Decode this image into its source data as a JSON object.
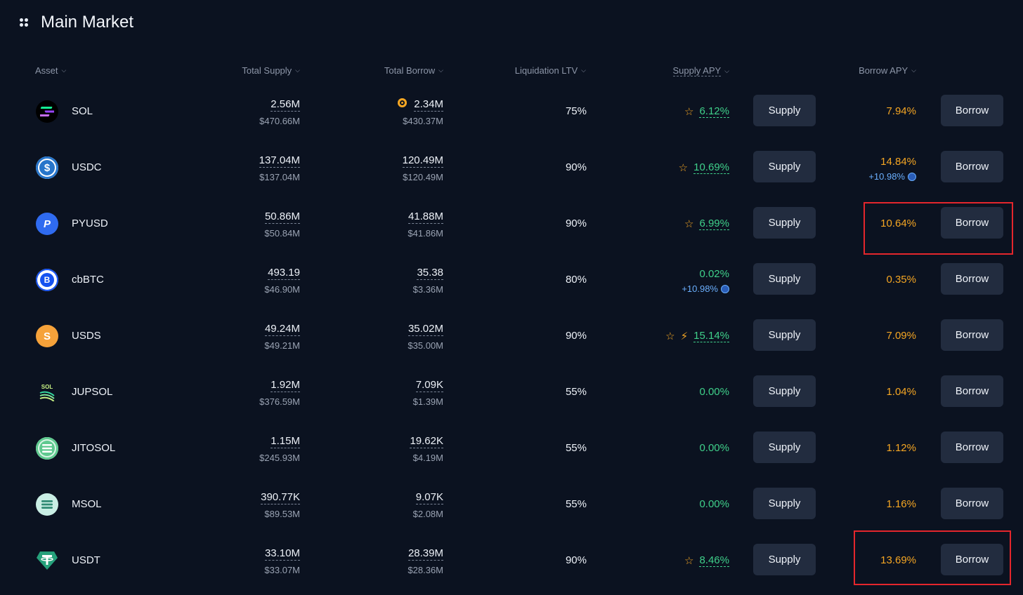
{
  "header": {
    "title": "Main Market"
  },
  "columns": {
    "asset": "Asset",
    "total_supply": "Total Supply",
    "total_borrow": "Total Borrow",
    "liquidation_ltv": "Liquidation LTV",
    "supply_apy": "Supply APY",
    "borrow_apy": "Borrow APY"
  },
  "buttons": {
    "supply": "Supply",
    "borrow": "Borrow"
  },
  "icons": {
    "star": "star-icon",
    "bolt": "lightning-icon",
    "reward": "reward-badge-icon",
    "coin": "coin-icon",
    "menu": "grid-dots-icon",
    "chevron": "chevron-down-icon"
  },
  "colors": {
    "background": "#0b1220",
    "supply_apy": "#3fd08a",
    "borrow_apy": "#f5a623",
    "reward_apy": "#6aaefc",
    "button": "#222c3f",
    "highlight": "#e4262c"
  },
  "assets": [
    {
      "symbol": "SOL",
      "supply": "2.56M",
      "supply_usd": "$470.66M",
      "borrow": "2.34M",
      "borrow_usd": "$430.37M",
      "ltv": "75%",
      "supply_apy": "6.12%",
      "supply_reward": "",
      "borrow_apy": "7.94%",
      "borrow_reward": ""
    },
    {
      "symbol": "USDC",
      "supply": "137.04M",
      "supply_usd": "$137.04M",
      "borrow": "120.49M",
      "borrow_usd": "$120.49M",
      "ltv": "90%",
      "supply_apy": "10.69%",
      "supply_reward": "",
      "borrow_apy": "14.84%",
      "borrow_reward": "+10.98%"
    },
    {
      "symbol": "PYUSD",
      "supply": "50.86M",
      "supply_usd": "$50.84M",
      "borrow": "41.88M",
      "borrow_usd": "$41.86M",
      "ltv": "90%",
      "supply_apy": "6.99%",
      "supply_reward": "",
      "borrow_apy": "10.64%",
      "borrow_reward": ""
    },
    {
      "symbol": "cbBTC",
      "supply": "493.19",
      "supply_usd": "$46.90M",
      "borrow": "35.38",
      "borrow_usd": "$3.36M",
      "ltv": "80%",
      "supply_apy": "0.02%",
      "supply_reward": "+10.98%",
      "borrow_apy": "0.35%",
      "borrow_reward": ""
    },
    {
      "symbol": "USDS",
      "supply": "49.24M",
      "supply_usd": "$49.21M",
      "borrow": "35.02M",
      "borrow_usd": "$35.00M",
      "ltv": "90%",
      "supply_apy": "15.14%",
      "supply_reward": "",
      "borrow_apy": "7.09%",
      "borrow_reward": ""
    },
    {
      "symbol": "JUPSOL",
      "supply": "1.92M",
      "supply_usd": "$376.59M",
      "borrow": "7.09K",
      "borrow_usd": "$1.39M",
      "ltv": "55%",
      "supply_apy": "0.00%",
      "supply_reward": "",
      "borrow_apy": "1.04%",
      "borrow_reward": ""
    },
    {
      "symbol": "JITOSOL",
      "supply": "1.15M",
      "supply_usd": "$245.93M",
      "borrow": "19.62K",
      "borrow_usd": "$4.19M",
      "ltv": "55%",
      "supply_apy": "0.00%",
      "supply_reward": "",
      "borrow_apy": "1.12%",
      "borrow_reward": ""
    },
    {
      "symbol": "MSOL",
      "supply": "390.77K",
      "supply_usd": "$89.53M",
      "borrow": "9.07K",
      "borrow_usd": "$2.08M",
      "ltv": "55%",
      "supply_apy": "0.00%",
      "supply_reward": "",
      "borrow_apy": "1.16%",
      "borrow_reward": ""
    },
    {
      "symbol": "USDT",
      "supply": "33.10M",
      "supply_usd": "$33.07M",
      "borrow": "28.39M",
      "borrow_usd": "$28.36M",
      "ltv": "90%",
      "supply_apy": "8.46%",
      "supply_reward": "",
      "borrow_apy": "13.69%",
      "borrow_reward": ""
    }
  ],
  "icon_glyphs": {
    "jupsol": "SOL"
  }
}
